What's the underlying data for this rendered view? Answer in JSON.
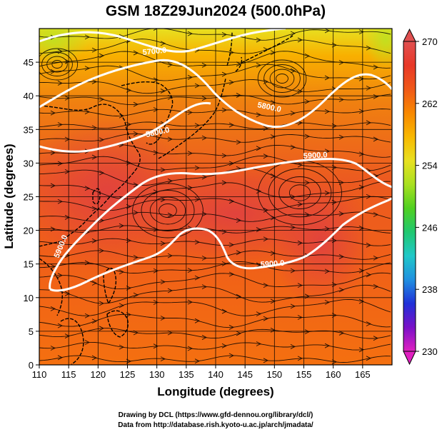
{
  "title": "GSM 18Z29Jun2024 (500.0hPa)",
  "x_axis": {
    "label": "Longitude (degrees)",
    "range": [
      110,
      170
    ],
    "ticks": [
      110,
      115,
      120,
      125,
      130,
      135,
      140,
      145,
      150,
      155,
      160,
      165
    ]
  },
  "y_axis": {
    "label": "Latitude (degrees)",
    "range": [
      0,
      50
    ],
    "ticks": [
      0,
      5,
      10,
      15,
      20,
      25,
      30,
      35,
      40,
      45
    ]
  },
  "colorbar": {
    "range": [
      230,
      270
    ],
    "tick_labels": [
      "270",
      "262",
      "254",
      "246",
      "238",
      "230"
    ],
    "colors": [
      "#e020c0",
      "#7a10c8",
      "#2030d8",
      "#2090e0",
      "#20c8c8",
      "#20c870",
      "#50d020",
      "#a8e020",
      "#e8e020",
      "#f8b800",
      "#f88800",
      "#f05818",
      "#e83828",
      "#e05050"
    ]
  },
  "contours": [
    {
      "label": "5700.0"
    },
    {
      "label": "5800.0"
    },
    {
      "label": "5800.0"
    },
    {
      "label": "5900.0"
    },
    {
      "label": "5900.0"
    },
    {
      "label": "5900.0"
    }
  ],
  "credits": {
    "line1": "Drawing by DCL (https://www.gfd-dennou.org/library/dcl/)",
    "line2": "Data from http://database.rish.kyoto-u.ac.jp/arch/jmadata/"
  }
}
